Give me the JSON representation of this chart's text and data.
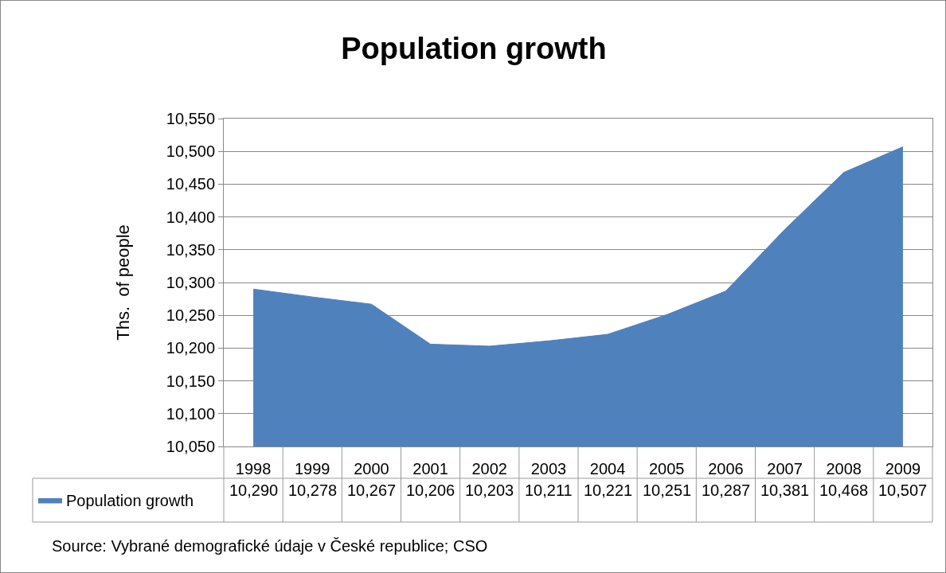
{
  "chart_data": {
    "type": "area",
    "title": "Population growth",
    "ylabel": "Ths.  of people",
    "categories": [
      "1998",
      "1999",
      "2000",
      "2001",
      "2002",
      "2003",
      "2004",
      "2005",
      "2006",
      "2007",
      "2008",
      "2009"
    ],
    "series": [
      {
        "name": "Population growth",
        "color": "#4f81bd",
        "values": [
          10290,
          10278,
          10267,
          10206,
          10203,
          10211,
          10221,
          10251,
          10287,
          10381,
          10468,
          10507
        ]
      }
    ],
    "ylim": [
      10050,
      10550
    ],
    "yticks": [
      {
        "value": 10050,
        "label": "10,050"
      },
      {
        "value": 10100,
        "label": "10,100"
      },
      {
        "value": 10150,
        "label": "10,150"
      },
      {
        "value": 10200,
        "label": "10,200"
      },
      {
        "value": 10250,
        "label": "10,250"
      },
      {
        "value": 10300,
        "label": "10,300"
      },
      {
        "value": 10350,
        "label": "10,350"
      },
      {
        "value": 10400,
        "label": "10,400"
      },
      {
        "value": 10450,
        "label": "10,450"
      },
      {
        "value": 10500,
        "label": "10,500"
      },
      {
        "value": 10550,
        "label": "10,550"
      }
    ],
    "value_labels": [
      "10,290",
      "10,278",
      "10,267",
      "10,206",
      "10,203",
      "10,211",
      "10,221",
      "10,251",
      "10,287",
      "10,381",
      "10,468",
      "10,507"
    ],
    "grid": "y",
    "legend": "bottom left",
    "marker": "none",
    "annotations": [
      "Source: Vybrané demografické údaje v České republice; CSO"
    ]
  }
}
